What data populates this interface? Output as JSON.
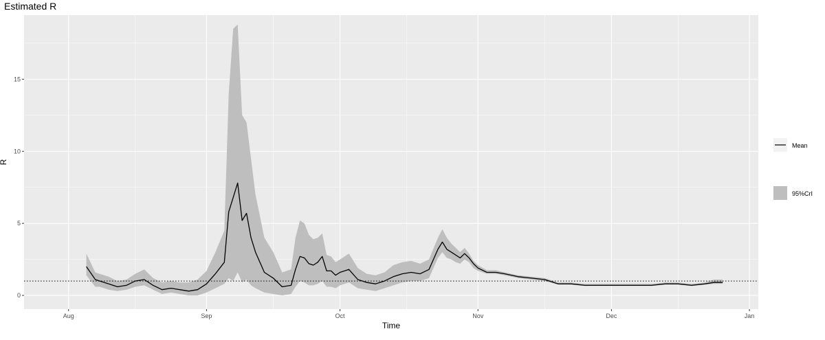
{
  "chart_data": {
    "type": "line",
    "title": "Estimated R",
    "xlabel": "Time",
    "ylabel": "R",
    "x_tick_labels": [
      "Aug",
      "Sep",
      "Oct",
      "Nov",
      "Dec",
      "Jan"
    ],
    "x_tick_dates": [
      "2020-08-01",
      "2020-09-01",
      "2020-10-01",
      "2020-11-01",
      "2020-12-01",
      "2021-01-01"
    ],
    "y_ticks": [
      0,
      5,
      10,
      15
    ],
    "xlim": [
      "2020-07-22",
      "2021-01-03"
    ],
    "ylim": [
      -0.95,
      19.45
    ],
    "reference_line": {
      "y": 1,
      "style": "dotted"
    },
    "grid": true,
    "legend_position": "right",
    "legend": [
      {
        "key": "mean",
        "label": "Mean"
      },
      {
        "key": "crl",
        "label": "95%CrI"
      }
    ],
    "colors": {
      "panel": "#ebebeb",
      "grid": "#ffffff",
      "ribbon": "#bebebe",
      "line": "#000000"
    },
    "series": [
      {
        "name": "Mean",
        "x": [
          "2020-08-05",
          "2020-08-07",
          "2020-08-08",
          "2020-08-10",
          "2020-08-12",
          "2020-08-14",
          "2020-08-16",
          "2020-08-18",
          "2020-08-20",
          "2020-08-22",
          "2020-08-24",
          "2020-08-26",
          "2020-08-28",
          "2020-08-30",
          "2020-09-01",
          "2020-09-03",
          "2020-09-05",
          "2020-09-06",
          "2020-09-07",
          "2020-09-08",
          "2020-09-09",
          "2020-09-10",
          "2020-09-11",
          "2020-09-12",
          "2020-09-14",
          "2020-09-16",
          "2020-09-18",
          "2020-09-20",
          "2020-09-21",
          "2020-09-22",
          "2020-09-23",
          "2020-09-24",
          "2020-09-25",
          "2020-09-26",
          "2020-09-27",
          "2020-09-28",
          "2020-09-29",
          "2020-09-30",
          "2020-10-01",
          "2020-10-03",
          "2020-10-05",
          "2020-10-07",
          "2020-10-09",
          "2020-10-11",
          "2020-10-13",
          "2020-10-15",
          "2020-10-17",
          "2020-10-19",
          "2020-10-21",
          "2020-10-23",
          "2020-10-24",
          "2020-10-25",
          "2020-10-26",
          "2020-10-27",
          "2020-10-28",
          "2020-10-29",
          "2020-10-30",
          "2020-10-31",
          "2020-11-01",
          "2020-11-03",
          "2020-11-05",
          "2020-11-07",
          "2020-11-10",
          "2020-11-13",
          "2020-11-16",
          "2020-11-19",
          "2020-11-22",
          "2020-11-25",
          "2020-11-28",
          "2020-12-01",
          "2020-12-04",
          "2020-12-07",
          "2020-12-10",
          "2020-12-13",
          "2020-12-16",
          "2020-12-19",
          "2020-12-22",
          "2020-12-24",
          "2020-12-26"
        ],
        "y": [
          2.0,
          1.1,
          1.0,
          0.8,
          0.6,
          0.7,
          1.0,
          1.1,
          0.7,
          0.4,
          0.5,
          0.4,
          0.3,
          0.4,
          0.8,
          1.5,
          2.3,
          5.8,
          6.8,
          7.8,
          5.2,
          5.7,
          4.0,
          3.0,
          1.6,
          1.2,
          0.6,
          0.7,
          1.8,
          2.7,
          2.6,
          2.2,
          2.1,
          2.3,
          2.7,
          1.7,
          1.7,
          1.4,
          1.6,
          1.8,
          1.1,
          0.9,
          0.8,
          1.0,
          1.3,
          1.5,
          1.6,
          1.5,
          1.8,
          3.2,
          3.7,
          3.2,
          3.0,
          2.8,
          2.6,
          2.9,
          2.6,
          2.2,
          1.9,
          1.6,
          1.6,
          1.5,
          1.3,
          1.2,
          1.1,
          0.8,
          0.8,
          0.7,
          0.7,
          0.7,
          0.7,
          0.7,
          0.7,
          0.8,
          0.8,
          0.7,
          0.8,
          0.9,
          0.9
        ]
      },
      {
        "name": "95%CrI",
        "x": [
          "2020-08-05",
          "2020-08-07",
          "2020-08-08",
          "2020-08-10",
          "2020-08-12",
          "2020-08-14",
          "2020-08-16",
          "2020-08-18",
          "2020-08-20",
          "2020-08-22",
          "2020-08-24",
          "2020-08-26",
          "2020-08-28",
          "2020-08-30",
          "2020-09-01",
          "2020-09-03",
          "2020-09-05",
          "2020-09-06",
          "2020-09-07",
          "2020-09-08",
          "2020-09-09",
          "2020-09-10",
          "2020-09-11",
          "2020-09-12",
          "2020-09-14",
          "2020-09-16",
          "2020-09-18",
          "2020-09-20",
          "2020-09-21",
          "2020-09-22",
          "2020-09-23",
          "2020-09-24",
          "2020-09-25",
          "2020-09-26",
          "2020-09-27",
          "2020-09-28",
          "2020-09-29",
          "2020-09-30",
          "2020-10-01",
          "2020-10-03",
          "2020-10-05",
          "2020-10-07",
          "2020-10-09",
          "2020-10-11",
          "2020-10-13",
          "2020-10-15",
          "2020-10-17",
          "2020-10-19",
          "2020-10-21",
          "2020-10-23",
          "2020-10-24",
          "2020-10-25",
          "2020-10-26",
          "2020-10-27",
          "2020-10-28",
          "2020-10-29",
          "2020-10-30",
          "2020-10-31",
          "2020-11-01",
          "2020-11-03",
          "2020-11-05",
          "2020-11-07",
          "2020-11-10",
          "2020-11-13",
          "2020-11-16",
          "2020-11-19",
          "2020-11-22",
          "2020-11-25",
          "2020-11-28",
          "2020-12-01",
          "2020-12-04",
          "2020-12-07",
          "2020-12-10",
          "2020-12-13",
          "2020-12-16",
          "2020-12-19",
          "2020-12-22",
          "2020-12-24",
          "2020-12-26"
        ],
        "lower": [
          1.4,
          0.6,
          0.6,
          0.4,
          0.3,
          0.4,
          0.6,
          0.7,
          0.4,
          0.1,
          0.2,
          0.1,
          0.0,
          0.0,
          0.2,
          0.5,
          0.8,
          1.2,
          1.0,
          1.6,
          0.9,
          1.1,
          0.7,
          0.5,
          0.2,
          0.1,
          0.0,
          0.1,
          0.6,
          1.0,
          0.9,
          0.7,
          0.7,
          0.8,
          1.0,
          0.6,
          0.6,
          0.5,
          0.7,
          0.9,
          0.5,
          0.4,
          0.3,
          0.5,
          0.7,
          0.9,
          1.0,
          1.0,
          1.2,
          2.6,
          3.0,
          2.6,
          2.5,
          2.3,
          2.2,
          2.5,
          2.3,
          1.9,
          1.7,
          1.5,
          1.5,
          1.4,
          1.2,
          1.1,
          1.0,
          0.75,
          0.75,
          0.65,
          0.65,
          0.65,
          0.65,
          0.65,
          0.65,
          0.75,
          0.75,
          0.65,
          0.75,
          0.8,
          0.8
        ],
        "upper": [
          2.9,
          1.6,
          1.5,
          1.3,
          1.0,
          1.1,
          1.5,
          1.8,
          1.2,
          0.9,
          1.0,
          0.9,
          0.9,
          1.1,
          1.7,
          3.0,
          4.5,
          14.0,
          18.5,
          18.8,
          12.5,
          12.0,
          9.5,
          7.0,
          4.0,
          3.0,
          1.6,
          1.8,
          4.0,
          5.2,
          5.0,
          4.2,
          3.9,
          4.0,
          4.3,
          2.8,
          2.7,
          2.3,
          2.5,
          2.9,
          1.9,
          1.5,
          1.4,
          1.6,
          2.1,
          2.3,
          2.4,
          2.2,
          2.5,
          4.0,
          4.6,
          4.0,
          3.6,
          3.3,
          3.0,
          3.3,
          2.9,
          2.4,
          2.1,
          1.75,
          1.75,
          1.6,
          1.4,
          1.3,
          1.2,
          0.9,
          0.9,
          0.8,
          0.8,
          0.8,
          0.8,
          0.8,
          0.8,
          0.9,
          0.9,
          0.8,
          0.9,
          1.1,
          1.1
        ]
      }
    ]
  }
}
